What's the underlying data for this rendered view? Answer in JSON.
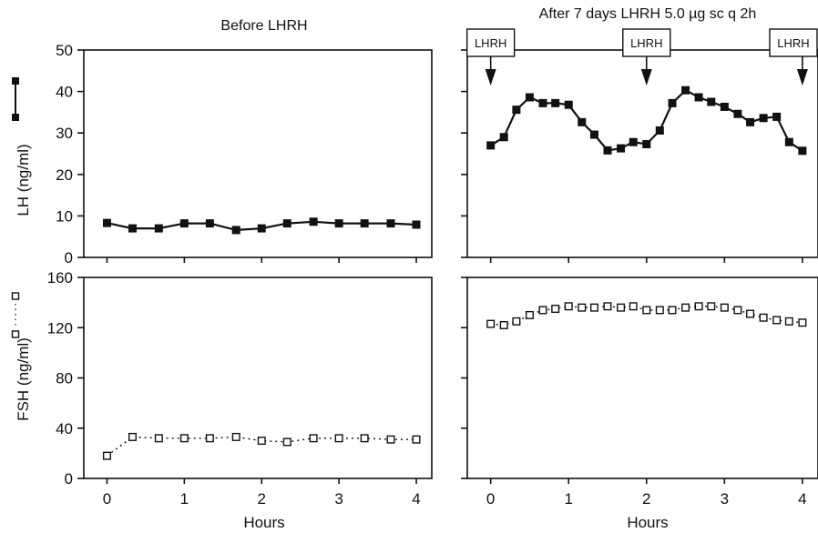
{
  "chart_data": [
    {
      "type": "line",
      "panel": "LH before",
      "title": "Before LHRH",
      "ylabel": "LH (ng/ml)",
      "ylim": [
        0,
        50
      ],
      "yticks": [
        0,
        10,
        20,
        30,
        40,
        50
      ],
      "xlim": [
        -0.3,
        4.2
      ],
      "xticks": [
        0,
        1,
        2,
        3,
        4
      ],
      "series": [
        {
          "marker": "filled-square",
          "x": [
            0,
            0.33,
            0.67,
            1,
            1.33,
            1.67,
            2,
            2.33,
            2.67,
            3,
            3.33,
            3.67,
            4
          ],
          "y": [
            8.3,
            7,
            7,
            8.2,
            8.2,
            6.6,
            7,
            8.2,
            8.6,
            8.2,
            8.2,
            8.2,
            7.9
          ]
        }
      ]
    },
    {
      "type": "line",
      "panel": "LH after",
      "title": "After 7 days LHRH 5.0 µg sc q 2h",
      "ylim": [
        0,
        50
      ],
      "xlim": [
        -0.3,
        4.2
      ],
      "xticks": [
        0,
        1,
        2,
        3,
        4
      ],
      "annotations": [
        {
          "x": 0,
          "text": "LHRH"
        },
        {
          "x": 2,
          "text": "LHRH"
        },
        {
          "x": 4,
          "text": "LHRH"
        }
      ],
      "series": [
        {
          "marker": "filled-square",
          "x": [
            0,
            0.17,
            0.33,
            0.5,
            0.67,
            0.83,
            1,
            1.17,
            1.33,
            1.5,
            1.67,
            1.83,
            2,
            2.17,
            2.33,
            2.5,
            2.67,
            2.83,
            3,
            3.17,
            3.33,
            3.5,
            3.67,
            3.83,
            4
          ],
          "y": [
            27,
            29,
            35.6,
            38.6,
            37.2,
            37.2,
            36.8,
            32.6,
            29.6,
            25.8,
            26.3,
            27.8,
            27.3,
            30.6,
            37.2,
            40.3,
            38.6,
            37.5,
            36.3,
            34.6,
            32.6,
            33.6,
            33.9,
            27.8,
            25.7
          ]
        }
      ]
    },
    {
      "type": "line",
      "panel": "FSH before",
      "ylabel": "FSH (ng/ml)",
      "xlabel": "Hours",
      "ylim": [
        0,
        160
      ],
      "yticks": [
        0,
        40,
        80,
        120,
        160
      ],
      "xlim": [
        -0.3,
        4.2
      ],
      "xticks": [
        0,
        1,
        2,
        3,
        4
      ],
      "series": [
        {
          "marker": "open-square",
          "x": [
            0,
            0.33,
            0.67,
            1,
            1.33,
            1.67,
            2,
            2.33,
            2.67,
            3,
            3.33,
            3.67,
            4
          ],
          "y": [
            18,
            33,
            32,
            32,
            32,
            33,
            30,
            29,
            32,
            32,
            32,
            31,
            31
          ]
        }
      ]
    },
    {
      "type": "line",
      "panel": "FSH after",
      "xlabel": "Hours",
      "ylim": [
        0,
        160
      ],
      "xlim": [
        -0.3,
        4.2
      ],
      "xticks": [
        0,
        1,
        2,
        3,
        4
      ],
      "series": [
        {
          "marker": "open-square",
          "x": [
            0,
            0.17,
            0.33,
            0.5,
            0.67,
            0.83,
            1,
            1.17,
            1.33,
            1.5,
            1.67,
            1.83,
            2,
            2.17,
            2.33,
            2.5,
            2.67,
            2.83,
            3,
            3.17,
            3.33,
            3.5,
            3.67,
            3.83,
            4
          ],
          "y": [
            123,
            122,
            125,
            130,
            134,
            135,
            137,
            136,
            136,
            137,
            136,
            137,
            134,
            134,
            134,
            136,
            137,
            137,
            136,
            134,
            131,
            128,
            126,
            125,
            124
          ]
        }
      ]
    }
  ]
}
